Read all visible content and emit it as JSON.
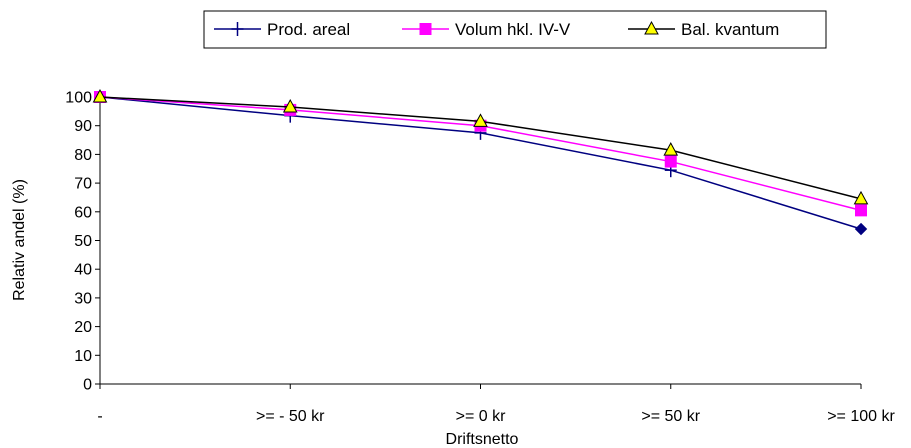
{
  "chart_data": {
    "type": "line",
    "title": "",
    "xlabel": "Driftsnetto",
    "ylabel": "Relativ andel (%)",
    "categories": [
      "-",
      ">= - 50 kr",
      ">= 0 kr",
      ">= 50 kr",
      ">= 100 kr"
    ],
    "ylim": [
      0,
      100
    ],
    "yticks": [
      0,
      10,
      20,
      30,
      40,
      50,
      60,
      70,
      80,
      90,
      100
    ],
    "grid": false,
    "legend_position": "top",
    "series": [
      {
        "name": "Prod. areal",
        "values": [
          100,
          93.5,
          87.5,
          74.5,
          54
        ],
        "color": "#000080",
        "marker": "plus-diamond"
      },
      {
        "name": "Volum hkl. IV-V",
        "values": [
          100,
          95.5,
          90,
          77.5,
          60.5
        ],
        "color": "#ff00ff",
        "marker": "square"
      },
      {
        "name": "Bal. kvantum",
        "values": [
          100,
          96.5,
          91.5,
          81.5,
          64.5
        ],
        "color": "#000000",
        "marker": "triangle"
      }
    ]
  }
}
